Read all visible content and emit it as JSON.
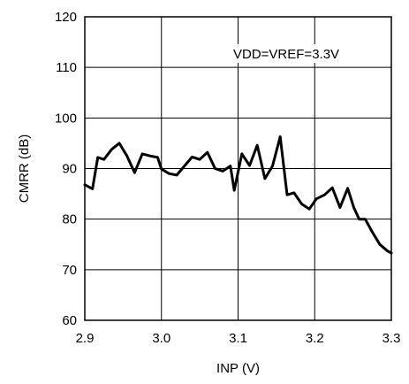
{
  "chart_data": {
    "type": "line",
    "title": "",
    "xlabel": "INP (V)",
    "ylabel": "CMRR (dB)",
    "xlim": [
      2.9,
      3.3
    ],
    "ylim": [
      60,
      120
    ],
    "x_ticks": [
      {
        "value": 2.9,
        "label": "2.9"
      },
      {
        "value": 3.0,
        "label": "3.0"
      },
      {
        "value": 3.1,
        "label": "3.1"
      },
      {
        "value": 3.2,
        "label": "3.2"
      },
      {
        "value": 3.3,
        "label": "3.3"
      }
    ],
    "y_ticks": [
      {
        "value": 60,
        "label": "60"
      },
      {
        "value": 70,
        "label": "70"
      },
      {
        "value": 80,
        "label": "80"
      },
      {
        "value": 90,
        "label": "90"
      },
      {
        "value": 100,
        "label": "100"
      },
      {
        "value": 110,
        "label": "110"
      },
      {
        "value": 120,
        "label": "120"
      }
    ],
    "grid": true,
    "annotation": "VDD=VREF=3.3V",
    "series": [
      {
        "color": "#000000",
        "x": [
          2.9,
          2.91,
          2.917,
          2.925,
          2.935,
          2.945,
          2.955,
          2.965,
          2.975,
          2.985,
          2.995,
          3.0,
          3.01,
          3.02,
          3.03,
          3.04,
          3.05,
          3.06,
          3.07,
          3.08,
          3.09,
          3.095,
          3.105,
          3.115,
          3.125,
          3.135,
          3.145,
          3.155,
          3.164,
          3.173,
          3.183,
          3.193,
          3.202,
          3.213,
          3.223,
          3.233,
          3.243,
          3.251,
          3.258,
          3.266,
          3.275,
          3.285,
          3.295,
          3.3
        ],
        "y": [
          86.8,
          86.0,
          92.2,
          91.8,
          93.8,
          95.0,
          92.5,
          89.2,
          92.9,
          92.5,
          92.2,
          89.9,
          89.0,
          88.7,
          90.5,
          92.3,
          91.8,
          93.2,
          90.0,
          89.5,
          90.5,
          85.7,
          92.9,
          90.6,
          94.6,
          88.0,
          90.5,
          96.3,
          84.8,
          85.2,
          83.0,
          82.0,
          84.0,
          84.8,
          86.2,
          82.3,
          86.1,
          82.3,
          80.0,
          80.0,
          77.5,
          75.0,
          73.7,
          73.3
        ]
      }
    ]
  }
}
